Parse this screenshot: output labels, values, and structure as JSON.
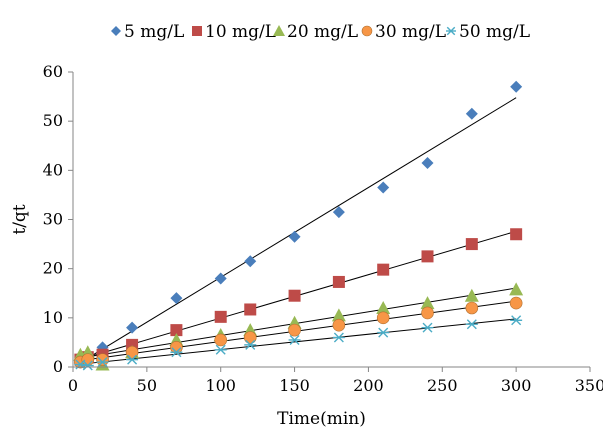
{
  "chart_data": {
    "type": "scatter",
    "title": "",
    "xlabel": "Time(min)",
    "ylabel": "t/qt",
    "xlim": [
      0,
      350
    ],
    "ylim": [
      0,
      60
    ],
    "xticks": [
      0,
      50,
      100,
      150,
      200,
      250,
      300,
      350
    ],
    "yticks": [
      0,
      10,
      20,
      30,
      40,
      50,
      60
    ],
    "grid": false,
    "legend_position": "top",
    "trendlines": "linear",
    "series": [
      {
        "name": "5 mg/L",
        "marker": "diamond",
        "color": "#4a7ebb",
        "x": [
          5,
          10,
          20,
          40,
          70,
          100,
          120,
          150,
          180,
          210,
          240,
          270,
          300
        ],
        "y": [
          1,
          2,
          4,
          8,
          14,
          18,
          21.5,
          26.5,
          31.5,
          36.5,
          41.5,
          51.5,
          57
        ]
      },
      {
        "name": "10 mg/L",
        "marker": "square",
        "color": "#be4b48",
        "x": [
          5,
          10,
          20,
          40,
          70,
          100,
          120,
          150,
          180,
          210,
          240,
          270,
          300
        ],
        "y": [
          1.5,
          2,
          2.5,
          4.5,
          7.5,
          10.2,
          11.7,
          14.5,
          17.3,
          19.8,
          22.5,
          25,
          27
        ]
      },
      {
        "name": "20 mg/L",
        "marker": "triangle",
        "color": "#98b954",
        "x": [
          5,
          10,
          20,
          40,
          70,
          100,
          120,
          150,
          180,
          210,
          240,
          270,
          300
        ],
        "y": [
          2.5,
          3,
          0.5,
          3,
          5.5,
          6.5,
          7.5,
          9,
          10.5,
          12,
          13,
          14.5,
          15.8
        ]
      },
      {
        "name": "30 mg/L",
        "marker": "circle",
        "color": "#f79646",
        "x": [
          5,
          10,
          20,
          40,
          70,
          100,
          120,
          150,
          180,
          210,
          240,
          270,
          300
        ],
        "y": [
          1,
          1.5,
          1.5,
          3,
          4,
          5.5,
          6,
          7.5,
          8.5,
          10,
          11,
          12,
          13
        ]
      },
      {
        "name": "50 mg/L",
        "marker": "asterisk",
        "color": "#4bacc6",
        "x": [
          5,
          10,
          20,
          40,
          70,
          100,
          120,
          150,
          180,
          210,
          240,
          270,
          300
        ],
        "y": [
          0.5,
          0.3,
          1,
          1.5,
          3,
          3.5,
          4.5,
          5.5,
          6,
          7,
          8,
          8.7,
          9.5
        ]
      }
    ]
  }
}
